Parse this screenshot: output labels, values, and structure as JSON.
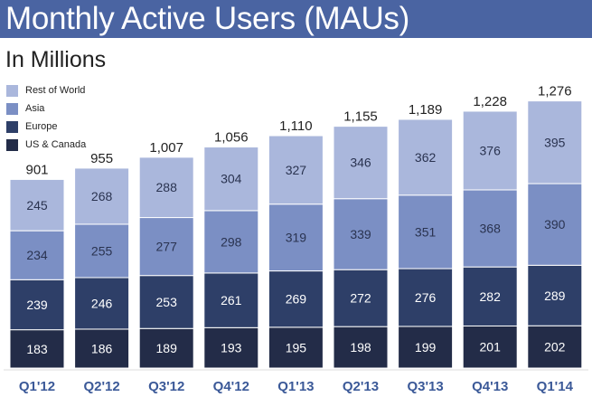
{
  "header": {
    "title": "Monthly Active Users (MAUs)"
  },
  "subtitle": "In Millions",
  "colors": {
    "title_bar": "#4a64a2",
    "us_canada": "#232c48",
    "europe": "#2e3f68",
    "asia": "#7b8fc4",
    "rest_of_world": "#aab7dc"
  },
  "chart_data": {
    "type": "bar",
    "stacked": true,
    "title": "Monthly Active Users (MAUs)",
    "subtitle": "In Millions",
    "categories": [
      "Q1'12",
      "Q2'12",
      "Q3'12",
      "Q4'12",
      "Q1'13",
      "Q2'13",
      "Q3'13",
      "Q4'13",
      "Q1'14"
    ],
    "series": [
      {
        "name": "US & Canada",
        "values": [
          183,
          186,
          189,
          193,
          195,
          198,
          199,
          201,
          202
        ]
      },
      {
        "name": "Europe",
        "values": [
          239,
          246,
          253,
          261,
          269,
          272,
          276,
          282,
          289
        ]
      },
      {
        "name": "Asia",
        "values": [
          234,
          255,
          277,
          298,
          319,
          339,
          351,
          368,
          390
        ]
      },
      {
        "name": "Rest of World",
        "values": [
          245,
          268,
          288,
          304,
          327,
          346,
          362,
          376,
          395
        ]
      }
    ],
    "totals": [
      "901",
      "955",
      "1,007",
      "1,056",
      "1,110",
      "1,155",
      "1,189",
      "1,228",
      "1,276"
    ],
    "legend": [
      "Rest of World",
      "Asia",
      "Europe",
      "US & Canada"
    ],
    "legend_position": "top-left",
    "grid": false,
    "ylim": [
      0,
      1350
    ]
  }
}
